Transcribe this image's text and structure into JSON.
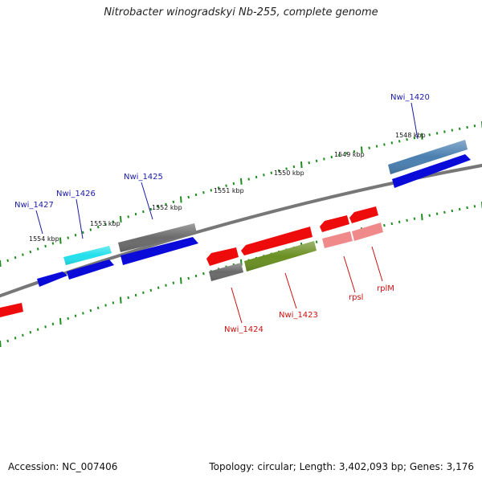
{
  "title": "Nitrobacter winogradskyi Nb-255, complete genome",
  "footer": {
    "accession": "Accession: NC_007406",
    "stats": "Topology: circular; Length: 3,402,093 bp; Genes: 3,176"
  },
  "colors": {
    "backbone": "#777777",
    "tick": "#1e8c1e",
    "label_blue": "#1a1aa8",
    "label_red": "#cc1111",
    "gene_blue": "#0b0bd9",
    "gene_red": "#ee0b0b",
    "gene_gray": "#6a6a6a",
    "gene_cyan": "#22e0ec",
    "gene_steel": "#4a7fb0",
    "gene_olive": "#6a8f22",
    "gene_pink": "#f08a8a"
  },
  "kbp_labels": [
    "1554 kbp",
    "1553 kbp",
    "1552 kbp",
    "1551 kbp",
    "1550 kbp",
    "1549 kbp",
    "1548 kbp"
  ],
  "gene_labels": {
    "nwi_1427": "Nwi_1427",
    "nwi_1426": "Nwi_1426",
    "nwi_1425": "Nwi_1425",
    "nwi_1420": "Nwi_1420",
    "nwi_1424": "Nwi_1424",
    "nwi_1423": "Nwi_1423",
    "rpsl": "rpsl",
    "rplm": "rplM"
  }
}
